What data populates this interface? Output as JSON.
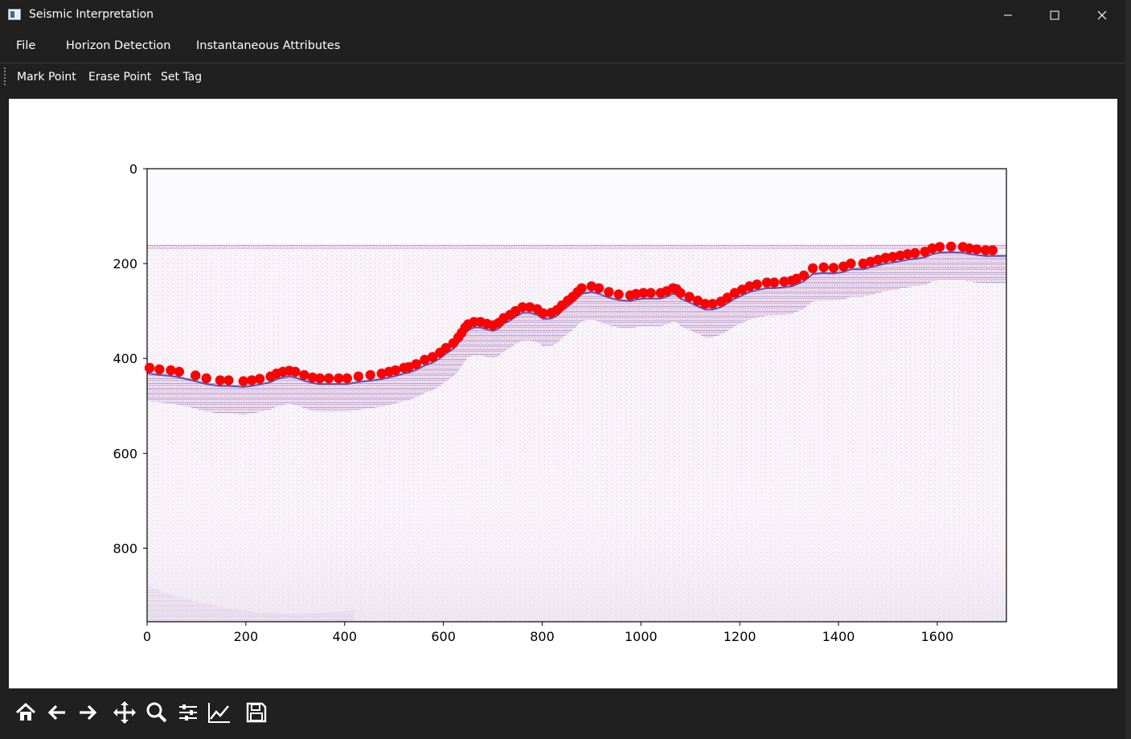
{
  "window": {
    "title": "Seismic Interpretation"
  },
  "menu": {
    "items": [
      "File",
      "Horizon Detection",
      "Instantaneous Attributes"
    ]
  },
  "toolbar": {
    "items": [
      "Mark Point",
      "Erase Point",
      "Set Tag"
    ]
  },
  "navigation_toolbar": {
    "icons": [
      "home-icon",
      "back-icon",
      "forward-icon",
      "pan-icon",
      "zoom-icon",
      "configure-subplots-icon",
      "edit-axis-icon",
      "save-icon"
    ]
  },
  "chart_data": {
    "type": "scatter",
    "description_kind": "seismic image with picked horizon points",
    "title": "",
    "xlabel": "",
    "ylabel": "",
    "xlim": [
      0,
      1740
    ],
    "ylim": [
      955,
      0
    ],
    "x_ticks": [
      0,
      200,
      400,
      600,
      800,
      1000,
      1200,
      1400,
      1600
    ],
    "y_ticks": [
      0,
      200,
      400,
      600,
      800
    ],
    "marker_color": "#ff0000",
    "colormap": "seismic (blue-white-red)",
    "seismic_start_depth": 160,
    "horizon_points": [
      [
        5,
        420
      ],
      [
        25,
        423
      ],
      [
        48,
        425
      ],
      [
        65,
        428
      ],
      [
        98,
        436
      ],
      [
        120,
        442
      ],
      [
        148,
        446
      ],
      [
        165,
        446
      ],
      [
        195,
        448
      ],
      [
        212,
        446
      ],
      [
        228,
        443
      ],
      [
        250,
        438
      ],
      [
        262,
        432
      ],
      [
        275,
        428
      ],
      [
        288,
        426
      ],
      [
        300,
        428
      ],
      [
        318,
        435
      ],
      [
        335,
        440
      ],
      [
        350,
        442
      ],
      [
        368,
        442
      ],
      [
        388,
        442
      ],
      [
        405,
        442
      ],
      [
        428,
        438
      ],
      [
        452,
        435
      ],
      [
        475,
        432
      ],
      [
        490,
        428
      ],
      [
        503,
        425
      ],
      [
        520,
        420
      ],
      [
        530,
        418
      ],
      [
        545,
        412
      ],
      [
        562,
        403
      ],
      [
        578,
        397
      ],
      [
        593,
        388
      ],
      [
        605,
        378
      ],
      [
        620,
        368
      ],
      [
        630,
        356
      ],
      [
        637,
        346
      ],
      [
        644,
        335
      ],
      [
        650,
        328
      ],
      [
        662,
        323
      ],
      [
        675,
        323
      ],
      [
        688,
        327
      ],
      [
        700,
        330
      ],
      [
        712,
        325
      ],
      [
        722,
        315
      ],
      [
        735,
        308
      ],
      [
        746,
        300
      ],
      [
        760,
        292
      ],
      [
        775,
        292
      ],
      [
        790,
        296
      ],
      [
        802,
        305
      ],
      [
        818,
        304
      ],
      [
        830,
        298
      ],
      [
        840,
        288
      ],
      [
        852,
        278
      ],
      [
        862,
        270
      ],
      [
        872,
        260
      ],
      [
        880,
        252
      ],
      [
        900,
        248
      ],
      [
        915,
        252
      ],
      [
        935,
        260
      ],
      [
        955,
        265
      ],
      [
        978,
        267
      ],
      [
        990,
        264
      ],
      [
        1005,
        262
      ],
      [
        1020,
        262
      ],
      [
        1040,
        262
      ],
      [
        1052,
        258
      ],
      [
        1065,
        252
      ],
      [
        1072,
        254
      ],
      [
        1080,
        262
      ],
      [
        1098,
        270
      ],
      [
        1115,
        278
      ],
      [
        1130,
        285
      ],
      [
        1145,
        285
      ],
      [
        1162,
        280
      ],
      [
        1175,
        272
      ],
      [
        1190,
        262
      ],
      [
        1205,
        255
      ],
      [
        1220,
        248
      ],
      [
        1235,
        244
      ],
      [
        1255,
        240
      ],
      [
        1270,
        240
      ],
      [
        1290,
        238
      ],
      [
        1305,
        236
      ],
      [
        1315,
        232
      ],
      [
        1330,
        225
      ],
      [
        1348,
        210
      ],
      [
        1370,
        208
      ],
      [
        1390,
        209
      ],
      [
        1410,
        206
      ],
      [
        1425,
        200
      ],
      [
        1450,
        200
      ],
      [
        1465,
        196
      ],
      [
        1480,
        192
      ],
      [
        1495,
        188
      ],
      [
        1510,
        186
      ],
      [
        1525,
        183
      ],
      [
        1540,
        180
      ],
      [
        1555,
        178
      ],
      [
        1575,
        175
      ],
      [
        1590,
        168
      ],
      [
        1605,
        165
      ],
      [
        1628,
        164
      ],
      [
        1652,
        165
      ],
      [
        1665,
        168
      ],
      [
        1680,
        170
      ],
      [
        1698,
        172
      ],
      [
        1712,
        172
      ]
    ]
  }
}
